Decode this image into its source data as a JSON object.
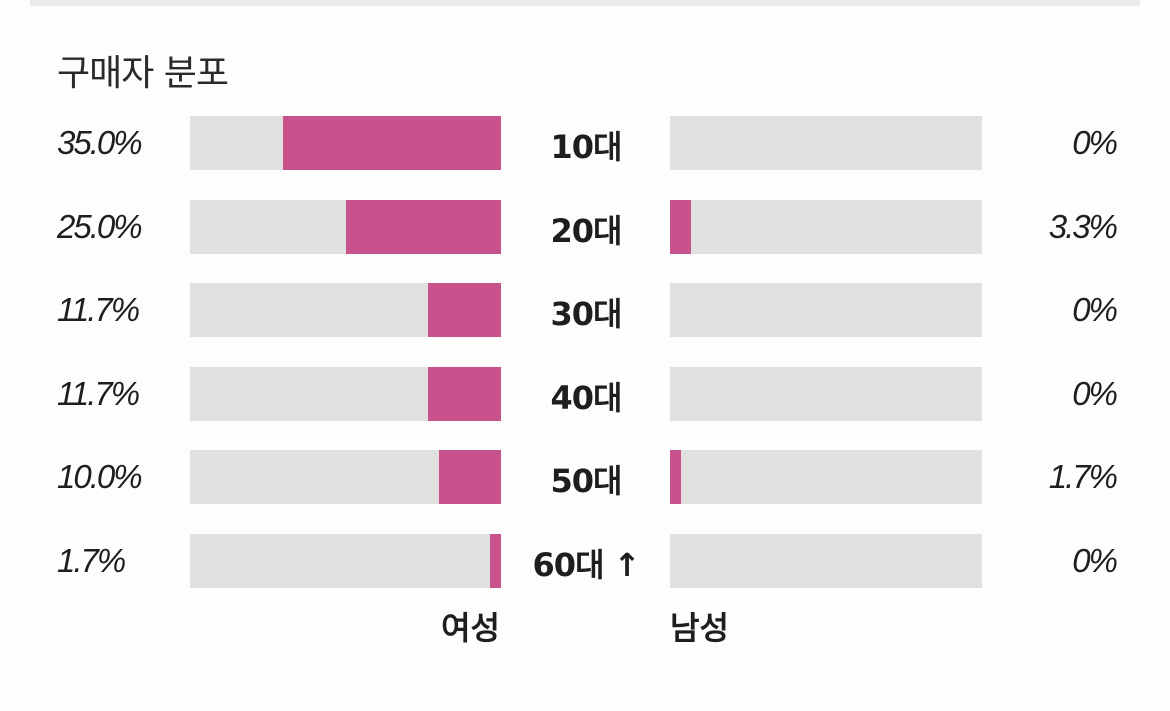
{
  "chart_data": {
    "type": "bar",
    "title": "구매자 분포",
    "orientation": "horizontal-diverging",
    "categories": [
      "10대",
      "20대",
      "30대",
      "40대",
      "50대",
      "60대 ↑"
    ],
    "series": [
      {
        "name": "여성",
        "values": [
          35.0,
          25.0,
          11.7,
          11.7,
          10.0,
          1.7
        ],
        "labels": [
          "35.0%",
          "25.0%",
          "11.7%",
          "11.7%",
          "10.0%",
          "1.7%"
        ]
      },
      {
        "name": "남성",
        "values": [
          0,
          3.3,
          0,
          0,
          1.7,
          0
        ],
        "labels": [
          "0%",
          "3.3%",
          "0%",
          "0%",
          "1.7%",
          "0%"
        ]
      }
    ],
    "xlim": [
      0,
      50
    ],
    "unit": "%",
    "grid": false,
    "colors": {
      "bar": "#c8528c",
      "track": "#e0e0e0"
    }
  }
}
